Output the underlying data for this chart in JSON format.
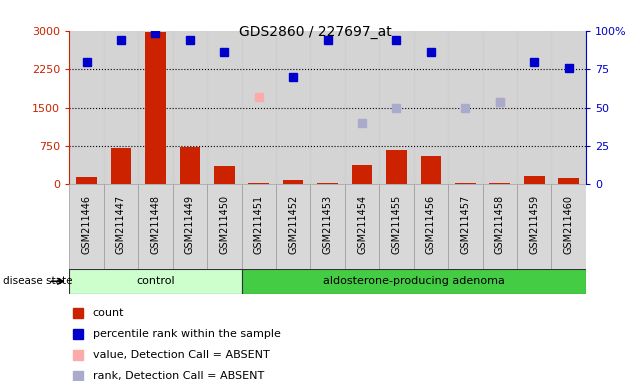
{
  "title": "GDS2860 / 227697_at",
  "samples": [
    "GSM211446",
    "GSM211447",
    "GSM211448",
    "GSM211449",
    "GSM211450",
    "GSM211451",
    "GSM211452",
    "GSM211453",
    "GSM211454",
    "GSM211455",
    "GSM211456",
    "GSM211457",
    "GSM211458",
    "GSM211459",
    "GSM211460"
  ],
  "count_values": [
    150,
    700,
    2980,
    720,
    350,
    30,
    80,
    30,
    380,
    680,
    550,
    20,
    20,
    170,
    120
  ],
  "percentile_rank": [
    2380,
    2820,
    2960,
    2820,
    2580,
    null,
    2100,
    2820,
    null,
    2820,
    2580,
    null,
    null,
    2380,
    2280
  ],
  "absent_value": [
    null,
    null,
    null,
    null,
    null,
    1700,
    null,
    null,
    null,
    null,
    null,
    null,
    1600,
    null,
    null
  ],
  "absent_rank": [
    null,
    null,
    null,
    null,
    null,
    null,
    null,
    null,
    1200,
    1500,
    null,
    1500,
    1600,
    null,
    null
  ],
  "n_control": 5,
  "n_adenoma": 10,
  "ylim_left": [
    0,
    3000
  ],
  "ylim_right": [
    0,
    100
  ],
  "yticks_left": [
    0,
    750,
    1500,
    2250,
    3000
  ],
  "yticks_right": [
    0,
    25,
    50,
    75,
    100
  ],
  "bar_color": "#cc2200",
  "blue_marker_color": "#0000cc",
  "absent_value_color": "#ffaaaa",
  "absent_rank_color": "#aaaacc",
  "plot_bg": "#d8d8d8",
  "control_bg": "#ccffcc",
  "adenoma_bg": "#44cc44",
  "legend_items": [
    "count",
    "percentile rank within the sample",
    "value, Detection Call = ABSENT",
    "rank, Detection Call = ABSENT"
  ],
  "legend_colors": [
    "#cc2200",
    "#0000cc",
    "#ffaaaa",
    "#aaaacc"
  ]
}
